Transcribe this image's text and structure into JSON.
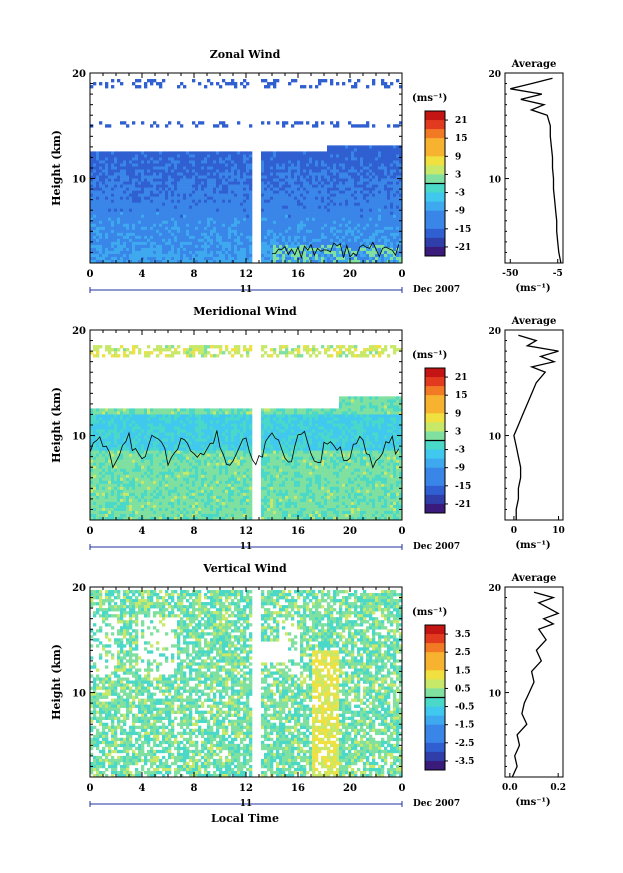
{
  "chart_data": [
    {
      "type": "heatmap",
      "title": "Zonal Wind",
      "ylabel": "Height (km)",
      "ylim": [
        2,
        20
      ],
      "yticks": [
        "10",
        "20"
      ],
      "xticks": [
        "0",
        "4",
        "8",
        "12",
        "16",
        "20",
        "0"
      ],
      "xlim": [
        0,
        24
      ],
      "date_day": "11",
      "date_label": "Dec 2007",
      "colorbar": {
        "unit": "(ms⁻¹)",
        "labels": [
          "21",
          "15",
          "9",
          "3",
          "-3",
          "-9",
          "-15",
          "-21"
        ],
        "range": [
          -24,
          24
        ]
      },
      "profile": {
        "title": "Average",
        "xlabel": "(ms⁻¹)",
        "xticks": [
          "-50",
          "-5"
        ],
        "xlim": [
          -55,
          0
        ],
        "yticks": [
          "10",
          "20"
        ],
        "heights": [
          2,
          3,
          4,
          5,
          6,
          7,
          8,
          9,
          10,
          11,
          12,
          13,
          14,
          15,
          16,
          16.5,
          17,
          17.5,
          18,
          18.5,
          19,
          19.5
        ],
        "values": [
          -2,
          -4,
          -5,
          -6,
          -6,
          -7,
          -8,
          -9,
          -9,
          -10,
          -10,
          -11,
          -12,
          -12,
          -15,
          -30,
          -18,
          -40,
          -20,
          -50,
          -30,
          -10
        ]
      }
    },
    {
      "type": "heatmap",
      "title": "Meridional Wind",
      "ylabel": "Height (km)",
      "ylim": [
        2,
        20
      ],
      "yticks": [
        "10",
        "20"
      ],
      "xticks": [
        "0",
        "4",
        "8",
        "12",
        "16",
        "20",
        "0"
      ],
      "xlim": [
        0,
        24
      ],
      "date_day": "11",
      "date_label": "Dec 2007",
      "colorbar": {
        "unit": "(ms⁻¹)",
        "labels": [
          "21",
          "15",
          "9",
          "3",
          "-3",
          "-9",
          "-15",
          "-21"
        ],
        "range": [
          -24,
          24
        ]
      },
      "profile": {
        "title": "Average",
        "xlabel": "(ms⁻¹)",
        "xticks": [
          "0",
          "10"
        ],
        "xlim": [
          -2,
          11
        ],
        "yticks": [
          "10",
          "20"
        ],
        "heights": [
          2,
          3,
          4,
          5,
          6,
          7,
          8,
          9,
          10,
          11,
          12,
          13,
          14,
          15,
          16,
          16.5,
          17,
          17.5,
          18,
          18.5,
          19,
          19.5
        ],
        "values": [
          0.5,
          0.5,
          1,
          1,
          1.5,
          1.5,
          1,
          0.5,
          0,
          1,
          2,
          3,
          4,
          5,
          7,
          4,
          9,
          6,
          10,
          3,
          5,
          1
        ]
      }
    },
    {
      "type": "heatmap",
      "title": "Vertical Wind",
      "ylabel": "Height (km)",
      "ylim": [
        2,
        20
      ],
      "yticks": [
        "10",
        "20"
      ],
      "xticks": [
        "0",
        "4",
        "8",
        "12",
        "16",
        "20",
        "0"
      ],
      "xlim": [
        0,
        24
      ],
      "date_day": "11",
      "date_label": "Dec 2007",
      "xlabel": "Local Time",
      "colorbar": {
        "unit": "(ms⁻¹)",
        "labels": [
          "3.5",
          "2.5",
          "1.5",
          "0.5",
          "-0.5",
          "-1.5",
          "-2.5",
          "-3.5"
        ],
        "range": [
          -4,
          4
        ]
      },
      "profile": {
        "title": "Average",
        "xlabel": "(ms⁻¹)",
        "xticks": [
          "0.0",
          "0.2"
        ],
        "xlim": [
          -0.02,
          0.22
        ],
        "yticks": [
          "10",
          "20"
        ],
        "heights": [
          2,
          3,
          4,
          5,
          6,
          7,
          8,
          9,
          10,
          11,
          12,
          13,
          14,
          15,
          16,
          16.5,
          17,
          17.5,
          18,
          18.5,
          19,
          19.5
        ],
        "values": [
          0.01,
          0.03,
          0.02,
          0.04,
          0.03,
          0.07,
          0.05,
          0.06,
          0.08,
          0.1,
          0.09,
          0.13,
          0.11,
          0.15,
          0.12,
          0.18,
          0.14,
          0.2,
          0.16,
          0.12,
          0.18,
          0.1
        ]
      }
    }
  ]
}
